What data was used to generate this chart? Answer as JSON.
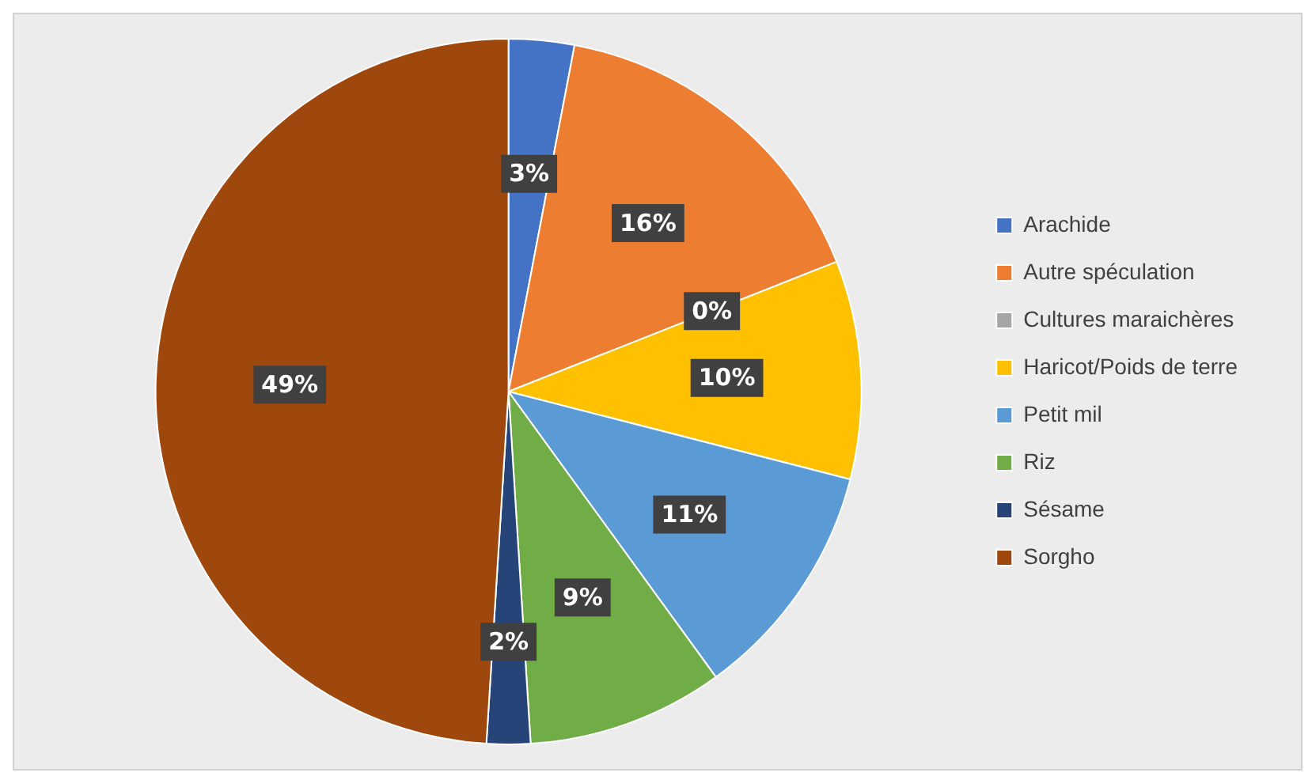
{
  "chart_data": {
    "type": "pie",
    "categories": [
      "Arachide",
      "Autre spéculation",
      "Cultures maraichères",
      "Haricot/Poids de terre",
      "Petit mil",
      "Riz",
      "Sésame",
      "Sorgho"
    ],
    "values": [
      3,
      16,
      0,
      10,
      11,
      9,
      2,
      49
    ],
    "colors": [
      "#4472c4",
      "#ed7d31",
      "#a5a5a5",
      "#ffc000",
      "#5b9bd5",
      "#70ad47",
      "#264478",
      "#9e480e"
    ],
    "value_labels": [
      "3%",
      "16%",
      "0%",
      "10%",
      "11%",
      "9%",
      "2%",
      "49%"
    ],
    "legend": "right"
  }
}
